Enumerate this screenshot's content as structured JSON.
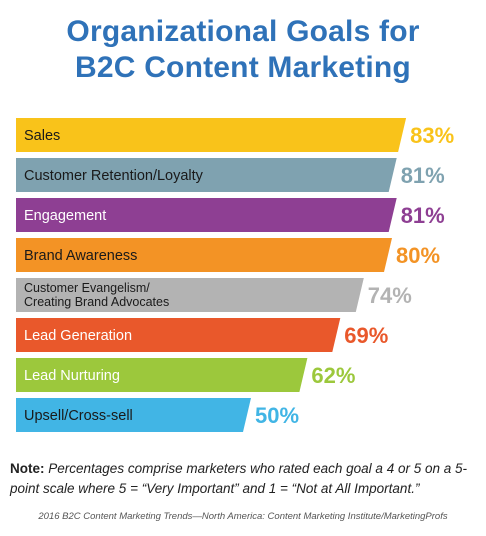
{
  "chart_data": {
    "type": "bar",
    "orientation": "horizontal",
    "title_lines": [
      "Organizational Goals for",
      "B2C Content Marketing"
    ],
    "categories": [
      [
        "Sales"
      ],
      [
        "Customer Retention/Loyalty"
      ],
      [
        "Engagement"
      ],
      [
        "Brand Awareness"
      ],
      [
        "Customer Evangelism/",
        "Creating Brand Advocates"
      ],
      [
        "Lead Generation"
      ],
      [
        "Lead Nurturing"
      ],
      [
        "Upsell/Cross-sell"
      ]
    ],
    "values": [
      83,
      81,
      81,
      80,
      74,
      69,
      62,
      50
    ],
    "value_labels": [
      "83%",
      "81%",
      "81%",
      "80%",
      "74%",
      "69%",
      "62%",
      "50%"
    ],
    "colors": [
      "#f9c31a",
      "#7fa2b0",
      "#8e3f93",
      "#f39325",
      "#b3b3b3",
      "#e9582b",
      "#9cc83c",
      "#41b5e5"
    ],
    "label_colors": [
      "#1a1a1a",
      "#1a1a1a",
      "#ffffff",
      "#1a1a1a",
      "#1a1a1a",
      "#ffffff",
      "#ffffff",
      "#1a1a1a"
    ],
    "value_label_colors": [
      "#f9c31a",
      "#7fa2b0",
      "#8e3f93",
      "#f39325",
      "#b3b3b3",
      "#e9582b",
      "#9cc83c",
      "#41b5e5"
    ],
    "xlim": [
      0,
      100
    ],
    "grid": false,
    "legend": "none"
  },
  "title_color": "#2f72b8",
  "note": {
    "head": "Note:",
    "body": "Percentages comprise marketers who rated each goal a 4 or 5 on a 5-point scale where 5 = “Very Important” and 1 = “Not at All Important.”"
  },
  "source": "2016 B2C Content Marketing Trends—North America: Content Marketing Institute/MarketingProfs"
}
